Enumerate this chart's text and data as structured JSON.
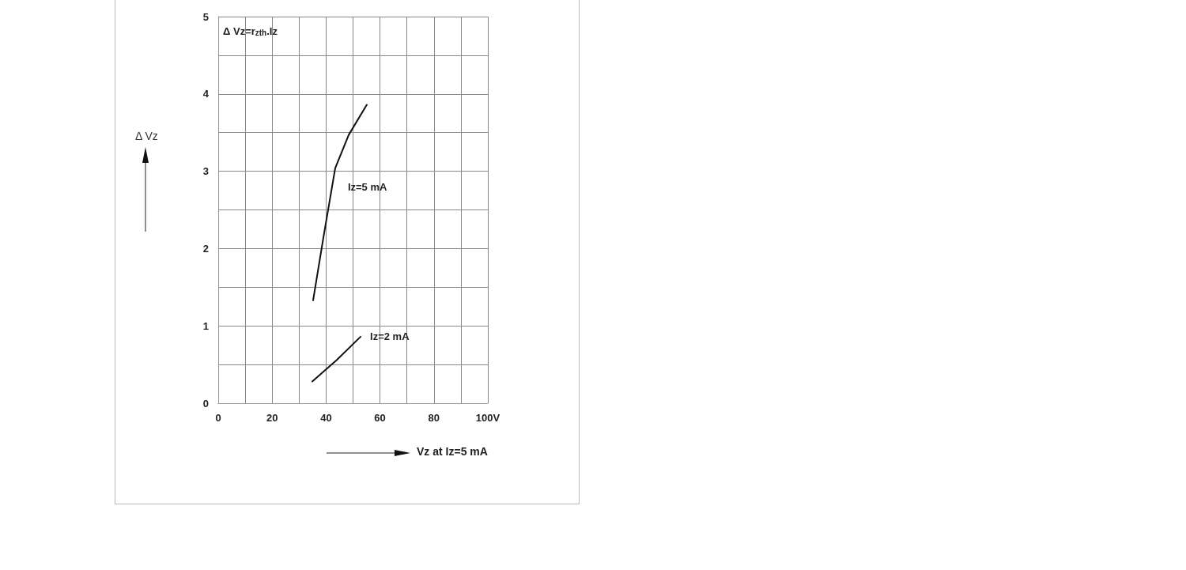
{
  "chart_data": {
    "type": "line",
    "xlabel": "Vz at Iz=5 mA",
    "ylabel": "Δ Vz",
    "annotations": [
      "Δ Vz=r$_{zth}$.Iz"
    ],
    "series": [
      {
        "name": "Iz=5 mA",
        "color": "#111111",
        "x": [
          35.2,
          39,
          43.4,
          48.4,
          55.1
        ],
        "values": [
          1.33,
          2.14,
          3.04,
          3.47,
          3.86
        ]
      },
      {
        "name": "Iz=2 mA",
        "color": "#111111",
        "x": [
          34.9,
          44,
          52.8
        ],
        "values": [
          0.28,
          0.56,
          0.86
        ]
      }
    ],
    "xlim": [
      0,
      100
    ],
    "xticks": [
      0,
      {
        "value": 10,
        "label": null
      },
      20,
      {
        "value": 30,
        "label": null
      },
      40,
      {
        "value": 50,
        "label": null
      },
      60,
      {
        "value": 70,
        "label": null
      },
      80,
      {
        "value": 90,
        "label": null
      },
      {
        "value": 100,
        "label": "100V"
      }
    ],
    "ylim": [
      0,
      5
    ],
    "yticks": [
      0,
      {
        "value": 0.5,
        "label": null
      },
      1,
      {
        "value": 1.5,
        "label": null
      },
      2,
      {
        "value": 2.5,
        "label": null
      },
      3,
      {
        "value": 3.5,
        "label": null
      },
      4,
      {
        "value": 4.5,
        "label": null
      },
      5
    ],
    "grid": true,
    "marker": "none",
    "line_style": "solid",
    "legend": false
  }
}
